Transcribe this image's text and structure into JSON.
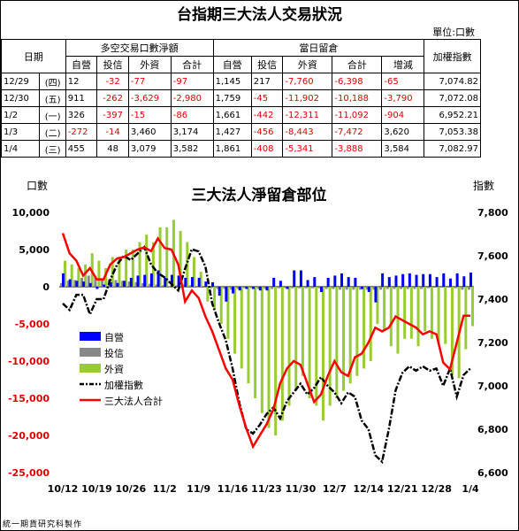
{
  "title": "台指期三大法人交易狀況",
  "unit_label": "單位:口數",
  "table": {
    "col_date": "日期",
    "group1": "多空交易口數淨額",
    "group2": "當日留倉",
    "col_index": "加權指數",
    "sub1": [
      "自營",
      "投信",
      "外資",
      "合計"
    ],
    "sub2": [
      "自營",
      "投信",
      "外資",
      "合計",
      "增減"
    ],
    "rows": [
      {
        "date": "12/29",
        "day": "(四)",
        "v": [
          "12",
          "-32",
          "-77",
          "-97",
          "1,145",
          "217",
          "-7,760",
          "-6,398",
          "-65",
          "7,074.82"
        ]
      },
      {
        "date": "12/30",
        "day": "(五)",
        "v": [
          "911",
          "-262",
          "-3,629",
          "-2,980",
          "1,759",
          "-45",
          "-11,902",
          "-10,188",
          "-3,790",
          "7,072.08"
        ]
      },
      {
        "date": "1/2",
        "day": "(一)",
        "v": [
          "326",
          "-397",
          "-15",
          "-86",
          "1,661",
          "-442",
          "-12,311",
          "-11,092",
          "-904",
          "6,952.21"
        ]
      },
      {
        "date": "1/3",
        "day": "(二)",
        "v": [
          "-272",
          "-14",
          "3,460",
          "3,174",
          "1,427",
          "-456",
          "-8,443",
          "-7,472",
          "3,620",
          "7,053.38"
        ]
      },
      {
        "date": "1/4",
        "day": "(三)",
        "v": [
          "455",
          "48",
          "3,079",
          "3,582",
          "1,861",
          "-408",
          "-5,341",
          "-3,888",
          "3,584",
          "7,082.97"
        ]
      }
    ]
  },
  "chart_data": {
    "type": "bar+line",
    "title": "三大法人淨留倉部位",
    "ylabel": "口數",
    "y2label": "指數",
    "ylim": [
      -25000,
      10000
    ],
    "y2lim": [
      6600,
      7800
    ],
    "yticks": [
      "10,000",
      "5,000",
      "0",
      "-5,000",
      "-10,000",
      "-15,000",
      "-20,000",
      "-25,000"
    ],
    "y2ticks": [
      "7,800",
      "7,600",
      "7,400",
      "7,200",
      "7,000",
      "6,800",
      "6,600"
    ],
    "xticks": [
      "10/12",
      "10/19",
      "10/26",
      "11/2",
      "11/9",
      "11/16",
      "11/23",
      "11/30",
      "12/7",
      "12/14",
      "12/21",
      "12/28",
      "1/4"
    ],
    "xtick_pos": [
      0,
      5,
      10,
      15,
      20,
      25,
      30,
      35,
      40,
      45,
      50,
      55,
      60
    ],
    "legend": [
      "自營",
      "投信",
      "外資",
      "加權指數",
      "三大法人合計"
    ],
    "colors": {
      "dealer": "#0000ff",
      "trust": "#888888",
      "foreign": "#99cc33",
      "index": "#000000",
      "total": "#ff0000"
    },
    "series": [
      {
        "name": "自營",
        "values": [
          1800,
          1000,
          800,
          700,
          500,
          -300,
          300,
          600,
          500,
          800,
          1200,
          1500,
          1600,
          1800,
          2200,
          1200,
          1600,
          1500,
          1200,
          1300,
          1200,
          700,
          600,
          -1200,
          -2000,
          -900,
          -500,
          -300,
          -300,
          -500,
          -500,
          1200,
          800,
          -300,
          2200,
          2200,
          900,
          1300,
          -700,
          1200,
          1500,
          1800,
          1300,
          1200,
          -300,
          -700,
          -2100,
          1800,
          1300,
          1500,
          1700,
          1800,
          1600,
          1700,
          1700,
          1300,
          1800,
          1100,
          1800,
          1400,
          1900
        ]
      },
      {
        "name": "投信",
        "values": [
          500,
          800,
          900,
          1200,
          1500,
          1300,
          1100,
          1000,
          900,
          800,
          700,
          600,
          500,
          400,
          300,
          200,
          100,
          200,
          300,
          200,
          100,
          -100,
          -200,
          -300,
          -300,
          -400,
          -300,
          -200,
          -200,
          -300,
          -300,
          -300,
          -200,
          -200,
          -200,
          -200,
          -200,
          -200,
          -200,
          -300,
          -300,
          -400,
          -400,
          -400,
          -400,
          -400,
          -400,
          -400,
          -300,
          -300,
          -300,
          -300,
          -300,
          -300,
          -200,
          -100,
          -100,
          -100,
          -200,
          -400,
          -400
        ]
      },
      {
        "name": "外資",
        "values": [
          3500,
          3000,
          2500,
          3000,
          4500,
          3500,
          2500,
          4000,
          4000,
          5000,
          5000,
          6000,
          7000,
          6000,
          8000,
          8000,
          9000,
          7500,
          6000,
          4000,
          2000,
          -2000,
          -3000,
          -5000,
          -7000,
          -9000,
          -11000,
          -13000,
          -15000,
          -17000,
          -19000,
          -20000,
          -18000,
          -16000,
          -14000,
          -12000,
          -15000,
          -16000,
          -18000,
          -16000,
          -15000,
          -14000,
          -13000,
          -12000,
          -11000,
          -10000,
          -5000,
          -6000,
          -8000,
          -9000,
          -7000,
          -7000,
          -8000,
          -6000,
          -7000,
          -7500,
          -7700,
          -11900,
          -12300,
          -8400,
          -5300
        ]
      },
      {
        "name": "三大法人合計",
        "values": [
          7200,
          4500,
          3500,
          1500,
          2500,
          1000,
          1000,
          3000,
          3800,
          4000,
          4500,
          5000,
          5300,
          4800,
          6500,
          5200,
          5000,
          3000,
          -2000,
          -500,
          -1500,
          -4000,
          -6000,
          -8500,
          -11000,
          -12500,
          -16000,
          -19000,
          -21500,
          -20000,
          -18500,
          -16500,
          -13000,
          -11000,
          -10000,
          -10500,
          -13000,
          -15500,
          -14500,
          -12000,
          -10000,
          -11500,
          -12000,
          -9500,
          -9000,
          -7500,
          -5500,
          -6000,
          -5500,
          -4000,
          -4500,
          -5000,
          -5500,
          -6400,
          -6000,
          -6400,
          -10200,
          -11100,
          -7500,
          -3900,
          -3900
        ]
      },
      {
        "name": "加權指數",
        "values": [
          7380,
          7350,
          7420,
          7420,
          7330,
          7400,
          7400,
          7490,
          7560,
          7600,
          7580,
          7610,
          7640,
          7560,
          7520,
          7500,
          7470,
          7440,
          7540,
          7630,
          7620,
          7550,
          7380,
          7290,
          7210,
          7080,
          6920,
          6800,
          6780,
          6820,
          6870,
          6900,
          6850,
          6930,
          6970,
          7010,
          6960,
          6990,
          7040,
          7000,
          6970,
          6920,
          6970,
          6950,
          6840,
          6800,
          6680,
          6650,
          6800,
          6980,
          7060,
          7090,
          7070,
          7090,
          7070,
          7080,
          7000,
          7080,
          6950,
          7050,
          7080
        ]
      }
    ]
  },
  "footer": "統一期貨研究科製作"
}
